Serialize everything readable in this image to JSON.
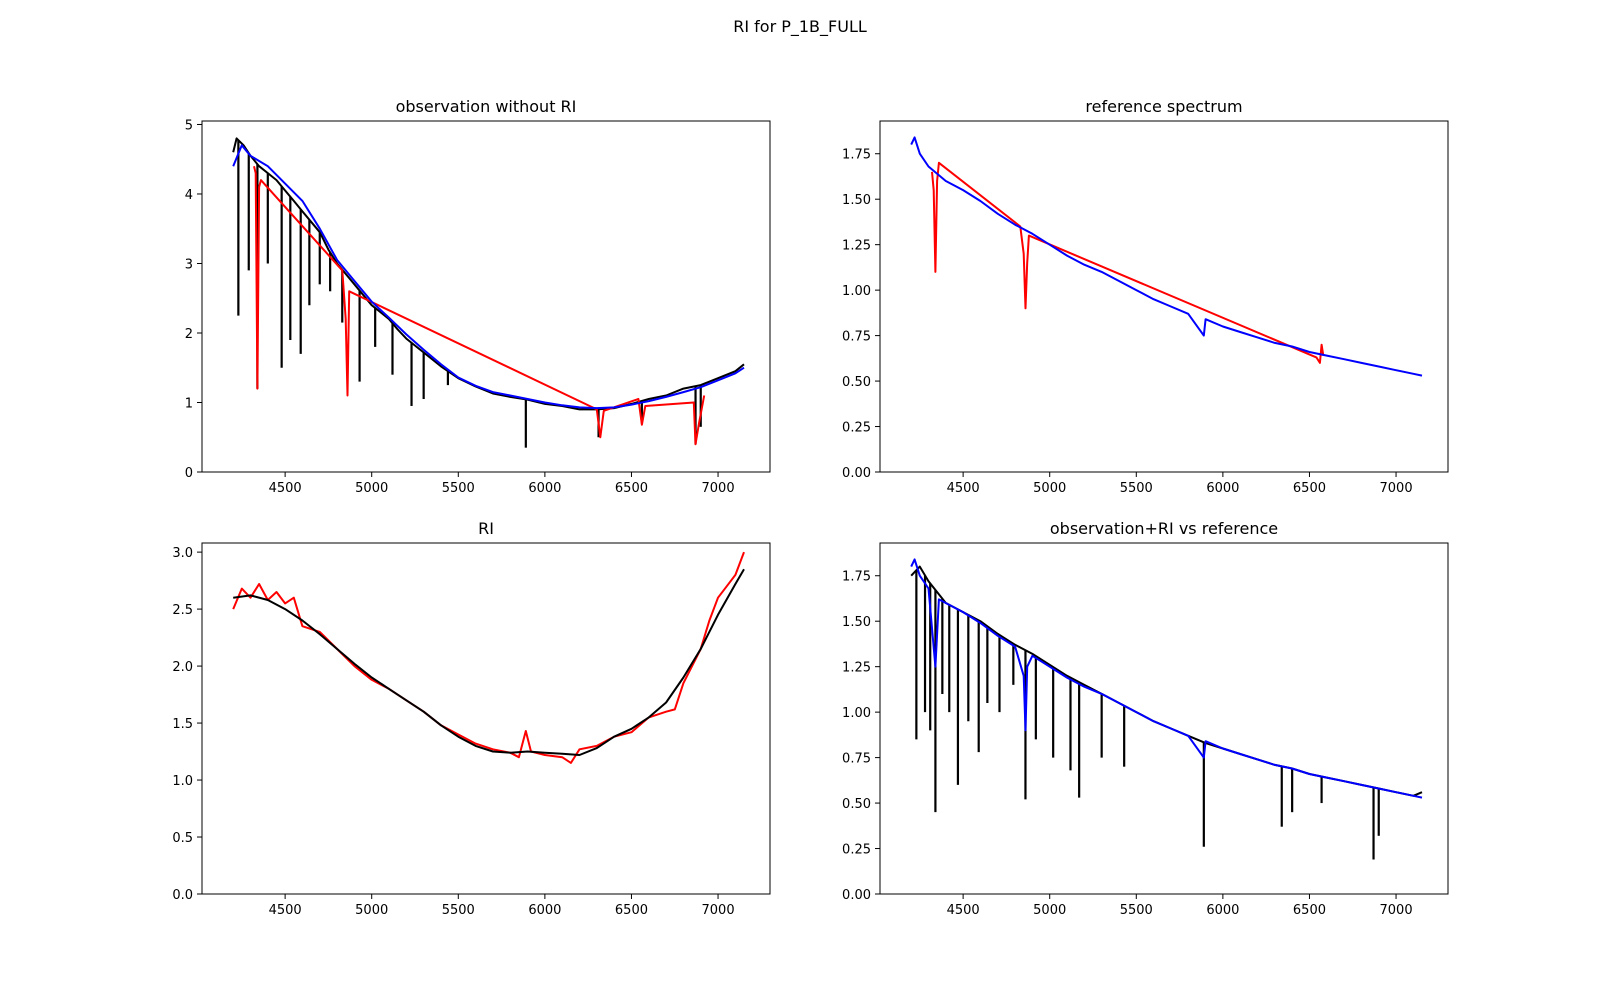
{
  "figure": {
    "suptitle": "RI for P_1B_FULL"
  },
  "colors": {
    "observation": "#000000",
    "ri_or_masked": "#ff0000",
    "reference": "#0000ff",
    "smooth": "#000000"
  },
  "chart_data": [
    {
      "type": "line",
      "title": "observation without RI",
      "xlabel": "",
      "ylabel": "",
      "xlim": [
        4020,
        7300
      ],
      "ylim": [
        0,
        5.05
      ],
      "xticks": [
        "4500",
        "5000",
        "5500",
        "6000",
        "6500",
        "7000"
      ],
      "yticks": [
        "0",
        "1",
        "2",
        "3",
        "4",
        "5"
      ],
      "grid": false,
      "series": [
        {
          "color": "black",
          "x": [
            4200,
            4220,
            4260,
            4300,
            4350,
            4400,
            4450,
            4500,
            4550,
            4600,
            4650,
            4700,
            4750,
            4800,
            4850,
            4900,
            4950,
            5000,
            5050,
            5100,
            5150,
            5200,
            5300,
            5400,
            5500,
            5600,
            5700,
            5800,
            5900,
            6000,
            6100,
            6200,
            6300,
            6400,
            6500,
            6600,
            6700,
            6800,
            6900,
            7000,
            7100,
            7150
          ],
          "y": [
            4.6,
            4.8,
            4.7,
            4.55,
            4.4,
            4.3,
            4.2,
            4.05,
            3.9,
            3.75,
            3.6,
            3.45,
            3.2,
            3.0,
            2.85,
            2.7,
            2.55,
            2.4,
            2.3,
            2.2,
            2.05,
            1.92,
            1.72,
            1.52,
            1.35,
            1.23,
            1.13,
            1.08,
            1.04,
            0.98,
            0.95,
            0.9,
            0.9,
            0.92,
            0.98,
            1.05,
            1.1,
            1.2,
            1.25,
            1.35,
            1.45,
            1.55
          ],
          "dips": [
            [
              4230,
              2.25
            ],
            [
              4290,
              2.9
            ],
            [
              4340,
              1.2
            ],
            [
              4400,
              3.0
            ],
            [
              4480,
              1.5
            ],
            [
              4530,
              1.9
            ],
            [
              4590,
              1.7
            ],
            [
              4640,
              2.4
            ],
            [
              4700,
              2.7
            ],
            [
              4760,
              2.6
            ],
            [
              4830,
              2.15
            ],
            [
              4930,
              1.3
            ],
            [
              5020,
              1.8
            ],
            [
              5120,
              1.4
            ],
            [
              5230,
              0.95
            ],
            [
              5300,
              1.05
            ],
            [
              5440,
              1.25
            ],
            [
              5890,
              0.35
            ],
            [
              6310,
              0.5
            ],
            [
              6560,
              0.7
            ],
            [
              6870,
              0.4
            ],
            [
              6900,
              0.65
            ]
          ]
        },
        {
          "color": "red",
          "x": [
            4320,
            4330,
            4340,
            4350,
            4360,
            4830,
            4850,
            4860,
            4870,
            6300,
            6320,
            6340,
            6540,
            6560,
            6580,
            6860,
            6870,
            6890,
            6920
          ],
          "y": [
            4.4,
            4.3,
            1.2,
            4.1,
            4.2,
            2.9,
            2.2,
            1.1,
            2.6,
            0.9,
            0.5,
            0.88,
            1.05,
            0.68,
            0.95,
            1.0,
            0.4,
            0.7,
            1.1
          ]
        },
        {
          "color": "blue",
          "x": [
            4200,
            4250,
            4300,
            4400,
            4500,
            4600,
            4700,
            4800,
            4900,
            5000,
            5100,
            5200,
            5300,
            5400,
            5500,
            5600,
            5700,
            5800,
            5900,
            6000,
            6100,
            6200,
            6300,
            6400,
            6500,
            6600,
            6700,
            6800,
            6900,
            7000,
            7100,
            7150
          ],
          "y": [
            4.4,
            4.7,
            4.55,
            4.4,
            4.15,
            3.9,
            3.5,
            3.05,
            2.75,
            2.45,
            2.22,
            1.98,
            1.76,
            1.55,
            1.36,
            1.24,
            1.15,
            1.1,
            1.05,
            1.0,
            0.96,
            0.93,
            0.92,
            0.93,
            0.97,
            1.02,
            1.08,
            1.15,
            1.22,
            1.32,
            1.42,
            1.5
          ]
        }
      ]
    },
    {
      "type": "line",
      "title": "reference spectrum",
      "xlabel": "",
      "ylabel": "",
      "xlim": [
        4020,
        7300
      ],
      "ylim": [
        0,
        1.93
      ],
      "xticks": [
        "4500",
        "5000",
        "5500",
        "6000",
        "6500",
        "7000"
      ],
      "yticks": [
        "0.00",
        "0.25",
        "0.50",
        "0.75",
        "1.00",
        "1.25",
        "1.50",
        "1.75"
      ],
      "grid": false,
      "series": [
        {
          "color": "red",
          "x": [
            4320,
            4330,
            4340,
            4350,
            4360,
            4830,
            4850,
            4860,
            4870,
            4880,
            6540,
            6560,
            6570,
            6580
          ],
          "y": [
            1.65,
            1.55,
            1.1,
            1.6,
            1.7,
            1.35,
            1.2,
            0.9,
            1.15,
            1.3,
            0.63,
            0.6,
            0.7,
            0.64
          ]
        },
        {
          "color": "blue",
          "x": [
            4200,
            4220,
            4250,
            4300,
            4400,
            4500,
            4600,
            4700,
            4800,
            4900,
            5000,
            5100,
            5200,
            5300,
            5400,
            5500,
            5600,
            5700,
            5800,
            5890,
            5900,
            6000,
            6100,
            6200,
            6300,
            6400,
            6500,
            6600,
            6700,
            6800,
            6900,
            7000,
            7100,
            7150
          ],
          "y": [
            1.8,
            1.84,
            1.75,
            1.68,
            1.6,
            1.55,
            1.49,
            1.42,
            1.36,
            1.31,
            1.25,
            1.19,
            1.14,
            1.1,
            1.05,
            1.0,
            0.95,
            0.91,
            0.87,
            0.75,
            0.84,
            0.8,
            0.77,
            0.74,
            0.71,
            0.69,
            0.66,
            0.64,
            0.62,
            0.6,
            0.58,
            0.56,
            0.54,
            0.53
          ]
        }
      ]
    },
    {
      "type": "line",
      "title": "RI",
      "xlabel": "",
      "ylabel": "",
      "xlim": [
        4020,
        7300
      ],
      "ylim": [
        0,
        3.08
      ],
      "xticks": [
        "4500",
        "5000",
        "5500",
        "6000",
        "6500",
        "7000"
      ],
      "yticks": [
        "0.0",
        "0.5",
        "1.0",
        "1.5",
        "2.0",
        "2.5",
        "3.0"
      ],
      "grid": false,
      "series": [
        {
          "color": "red",
          "x": [
            4200,
            4250,
            4300,
            4350,
            4400,
            4450,
            4500,
            4550,
            4600,
            4700,
            4800,
            4900,
            5000,
            5100,
            5200,
            5300,
            5400,
            5500,
            5600,
            5700,
            5800,
            5850,
            5890,
            5920,
            6000,
            6100,
            6150,
            6200,
            6300,
            6400,
            6500,
            6600,
            6700,
            6750,
            6800,
            6900,
            6950,
            7000,
            7050,
            7100,
            7150
          ],
          "y": [
            2.5,
            2.68,
            2.6,
            2.72,
            2.58,
            2.65,
            2.55,
            2.6,
            2.35,
            2.3,
            2.15,
            2.0,
            1.88,
            1.8,
            1.7,
            1.6,
            1.48,
            1.4,
            1.32,
            1.27,
            1.24,
            1.2,
            1.43,
            1.25,
            1.22,
            1.2,
            1.15,
            1.27,
            1.3,
            1.38,
            1.42,
            1.55,
            1.6,
            1.62,
            1.85,
            2.15,
            2.4,
            2.6,
            2.7,
            2.8,
            3.0
          ]
        },
        {
          "color": "black",
          "x": [
            4200,
            4300,
            4400,
            4500,
            4600,
            4700,
            4800,
            4900,
            5000,
            5100,
            5200,
            5300,
            5400,
            5500,
            5600,
            5700,
            5800,
            5900,
            6000,
            6100,
            6200,
            6300,
            6400,
            6500,
            6600,
            6700,
            6800,
            6900,
            7000,
            7100,
            7150
          ],
          "y": [
            2.6,
            2.62,
            2.58,
            2.5,
            2.4,
            2.28,
            2.15,
            2.02,
            1.9,
            1.8,
            1.7,
            1.6,
            1.48,
            1.38,
            1.3,
            1.25,
            1.24,
            1.25,
            1.24,
            1.23,
            1.22,
            1.28,
            1.38,
            1.45,
            1.55,
            1.68,
            1.9,
            2.15,
            2.45,
            2.72,
            2.85
          ]
        }
      ]
    },
    {
      "type": "line",
      "title": "observation+RI vs reference",
      "xlabel": "",
      "ylabel": "",
      "xlim": [
        4020,
        7300
      ],
      "ylim": [
        0,
        1.93
      ],
      "xticks": [
        "4500",
        "5000",
        "5500",
        "6000",
        "6500",
        "7000"
      ],
      "yticks": [
        "0.00",
        "0.25",
        "0.50",
        "0.75",
        "1.00",
        "1.25",
        "1.50",
        "1.75"
      ],
      "grid": false,
      "series": [
        {
          "color": "black",
          "x": [
            4200,
            4250,
            4300,
            4400,
            4500,
            4600,
            4700,
            4800,
            4900,
            5000,
            5100,
            5200,
            5300,
            5400,
            5500,
            5600,
            5700,
            5800,
            5900,
            6000,
            6100,
            6200,
            6300,
            6400,
            6500,
            6600,
            6700,
            6800,
            6900,
            7000,
            7100,
            7150
          ],
          "y": [
            1.75,
            1.8,
            1.72,
            1.6,
            1.55,
            1.5,
            1.43,
            1.37,
            1.32,
            1.26,
            1.2,
            1.15,
            1.1,
            1.05,
            1.0,
            0.95,
            0.91,
            0.87,
            0.83,
            0.8,
            0.77,
            0.74,
            0.71,
            0.69,
            0.66,
            0.64,
            0.62,
            0.6,
            0.58,
            0.56,
            0.54,
            0.56
          ],
          "dips": [
            [
              4230,
              0.85
            ],
            [
              4280,
              1.0
            ],
            [
              4310,
              0.9
            ],
            [
              4340,
              0.45
            ],
            [
              4380,
              1.1
            ],
            [
              4420,
              1.0
            ],
            [
              4470,
              0.6
            ],
            [
              4530,
              0.95
            ],
            [
              4590,
              0.78
            ],
            [
              4640,
              1.05
            ],
            [
              4710,
              1.0
            ],
            [
              4790,
              1.15
            ],
            [
              4860,
              0.52
            ],
            [
              4920,
              0.85
            ],
            [
              5020,
              0.75
            ],
            [
              5120,
              0.68
            ],
            [
              5170,
              0.53
            ],
            [
              5300,
              0.75
            ],
            [
              5430,
              0.7
            ],
            [
              5890,
              0.26
            ],
            [
              6340,
              0.37
            ],
            [
              6400,
              0.45
            ],
            [
              6570,
              0.5
            ],
            [
              6870,
              0.19
            ],
            [
              6900,
              0.32
            ]
          ]
        },
        {
          "color": "blue",
          "x": [
            4200,
            4220,
            4250,
            4300,
            4340,
            4360,
            4400,
            4500,
            4600,
            4700,
            4800,
            4850,
            4860,
            4870,
            4900,
            5000,
            5100,
            5200,
            5300,
            5400,
            5500,
            5600,
            5700,
            5800,
            5890,
            5900,
            6000,
            6100,
            6200,
            6300,
            6400,
            6500,
            6600,
            6700,
            6800,
            6900,
            7000,
            7100,
            7150
          ],
          "y": [
            1.8,
            1.84,
            1.75,
            1.68,
            1.25,
            1.62,
            1.6,
            1.55,
            1.49,
            1.42,
            1.36,
            1.2,
            0.9,
            1.25,
            1.31,
            1.25,
            1.19,
            1.14,
            1.1,
            1.05,
            1.0,
            0.95,
            0.91,
            0.87,
            0.75,
            0.84,
            0.8,
            0.77,
            0.74,
            0.71,
            0.69,
            0.66,
            0.64,
            0.62,
            0.6,
            0.58,
            0.56,
            0.54,
            0.53
          ]
        }
      ]
    }
  ]
}
